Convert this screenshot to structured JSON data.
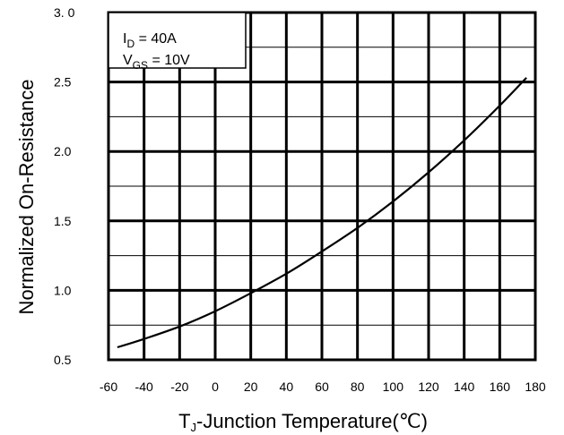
{
  "chart_data": {
    "type": "line",
    "xlabel_main": "T",
    "xlabel_sub": "J",
    "xlabel_rest": "-Junction Temperature(℃)",
    "ylabel": "Normalized On-Resistance",
    "xlim": [
      -60,
      180
    ],
    "ylim": [
      0.5,
      3.0
    ],
    "x_ticks": [
      "-60",
      "-40",
      "-20",
      "0",
      "20",
      "40",
      "60",
      "80",
      "100",
      "120",
      "140",
      "160",
      "180"
    ],
    "y_ticks": [
      "0.5",
      "1.0",
      "1.5",
      "2.0",
      "2.5",
      "3. 0"
    ],
    "grid": true,
    "legend_placement": "top-left",
    "annotations": [
      {
        "main": "I",
        "sub": "D",
        "rest": " = 40A"
      },
      {
        "main": "V",
        "sub": "GS",
        "rest": " = 10V"
      }
    ],
    "series": [
      {
        "x": [
          -55,
          -40,
          -20,
          0,
          20,
          40,
          60,
          80,
          100,
          120,
          140,
          160,
          175
        ],
        "y": [
          0.59,
          0.65,
          0.74,
          0.85,
          0.98,
          1.12,
          1.28,
          1.45,
          1.64,
          1.85,
          2.08,
          2.33,
          2.53
        ]
      }
    ]
  }
}
